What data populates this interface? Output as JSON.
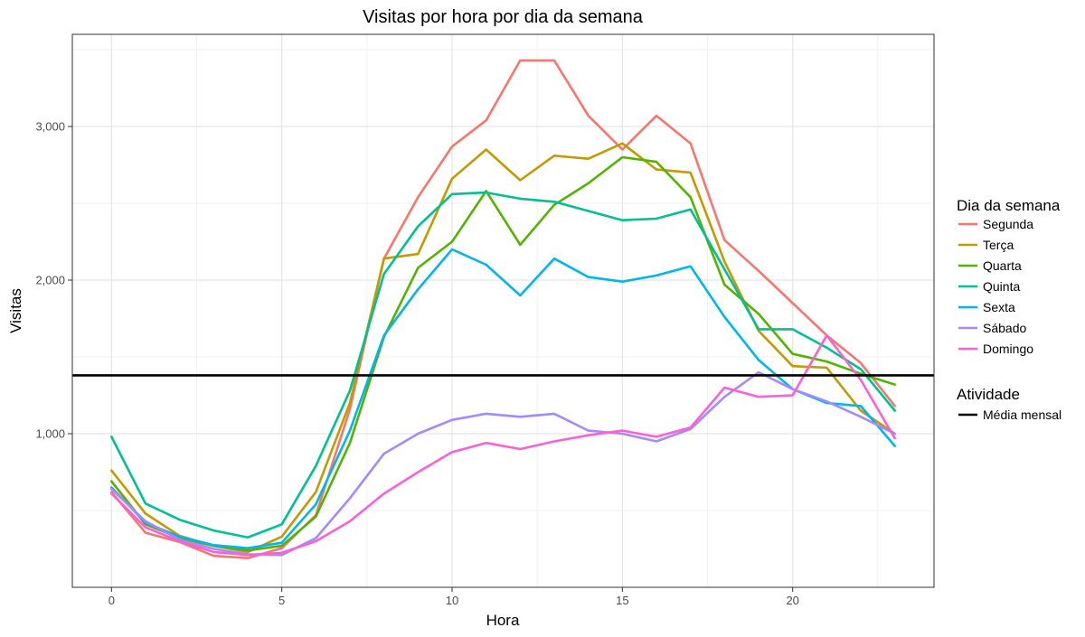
{
  "chart_data": {
    "type": "line",
    "title": "Visitas por hora por dia da semana",
    "xlabel": "Hora",
    "ylabel": "Visitas",
    "xlim": [
      -1.15,
      24.15
    ],
    "ylim": [
      -1000,
      3000
    ],
    "x_ticks": [
      0,
      5,
      10,
      15,
      20
    ],
    "y_ticks": [
      1000,
      2000,
      3000
    ],
    "y_tick_labels": [
      "1,000",
      "2,000",
      "3,000"
    ],
    "grid": true,
    "legend_position": "right",
    "legend_title": "Dia da semana",
    "x": [
      0,
      1,
      2,
      3,
      4,
      5,
      6,
      7,
      8,
      9,
      10,
      11,
      12,
      13,
      14,
      15,
      16,
      17,
      18,
      19,
      20,
      21,
      22,
      23
    ],
    "series": [
      {
        "name": "Segunda",
        "color": "#F8766D",
        "values": [
          620,
          355,
          295,
          205,
          190,
          255,
          470,
          1160,
          2140,
          2540,
          2870,
          3040,
          3430,
          3430,
          3070,
          2850,
          3070,
          2890,
          2260,
          2060,
          1850,
          1640,
          1460,
          1180
        ]
      },
      {
        "name": "Terça",
        "color": "#C49A00",
        "values": [
          760,
          480,
          335,
          270,
          230,
          330,
          620,
          1200,
          2140,
          2170,
          2660,
          2850,
          2650,
          2810,
          2790,
          2890,
          2720,
          2700,
          2120,
          1670,
          1440,
          1430,
          1150,
          1000
        ]
      },
      {
        "name": "Quarta",
        "color": "#53B400",
        "values": [
          690,
          410,
          320,
          270,
          240,
          270,
          460,
          940,
          1630,
          2080,
          2250,
          2580,
          2230,
          2490,
          2630,
          2800,
          2770,
          2540,
          1970,
          1780,
          1520,
          1470,
          1390,
          1320
        ]
      },
      {
        "name": "Quinta",
        "color": "#00C094",
        "values": [
          980,
          545,
          440,
          370,
          325,
          410,
          790,
          1280,
          2040,
          2350,
          2560,
          2570,
          2530,
          2510,
          2450,
          2390,
          2400,
          2460,
          2070,
          1680,
          1680,
          1560,
          1420,
          1150
        ]
      },
      {
        "name": "Sexta",
        "color": "#00B6EB",
        "values": [
          650,
          420,
          330,
          275,
          255,
          290,
          540,
          1020,
          1640,
          1940,
          2200,
          2100,
          1900,
          2140,
          2020,
          1990,
          2030,
          2090,
          1760,
          1480,
          1290,
          1200,
          1180,
          920
        ]
      },
      {
        "name": "Sábado",
        "color": "#A58AFF",
        "values": [
          640,
          430,
          310,
          250,
          215,
          210,
          320,
          580,
          870,
          1000,
          1090,
          1130,
          1110,
          1130,
          1020,
          1000,
          950,
          1030,
          1240,
          1400,
          1290,
          1210,
          1110,
          1000
        ]
      },
      {
        "name": "Domingo",
        "color": "#FB61D7",
        "values": [
          610,
          390,
          300,
          230,
          210,
          225,
          300,
          430,
          610,
          750,
          880,
          940,
          900,
          950,
          990,
          1020,
          980,
          1040,
          1300,
          1240,
          1250,
          1640,
          1350,
          970
        ]
      }
    ],
    "reference_line": {
      "legend_title": "Atividade",
      "name": "Média mensal",
      "value": 1380,
      "color": "#000000"
    }
  }
}
